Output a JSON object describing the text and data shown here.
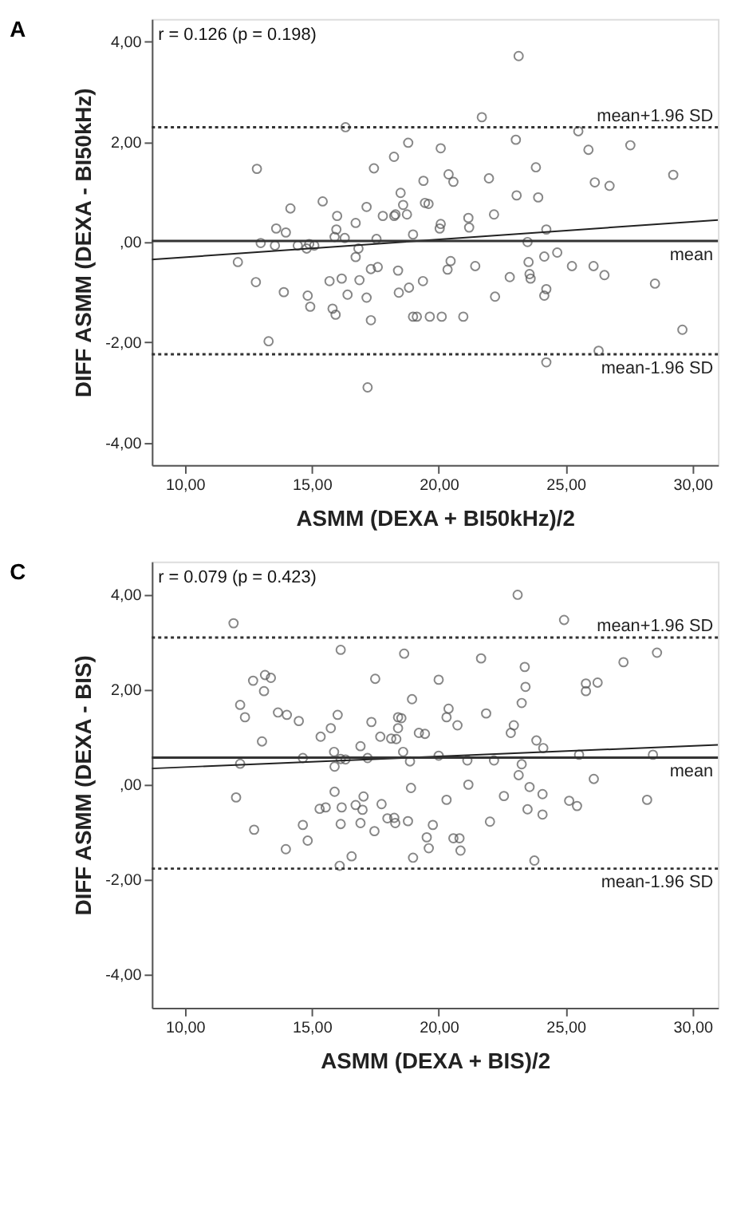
{
  "chart_data": [
    {
      "type": "scatter",
      "title": "A",
      "xlabel": "ASMM (DEXA + BI50kHz)/2",
      "ylabel": "DIFF ASMM (DEXA - BI50kHz)",
      "annotations": [
        "r = 0.126 (p = 0.198)"
      ],
      "xlim": [
        8.7,
        31
      ],
      "ylim": [
        -4.45,
        4.45
      ],
      "xticks": [
        {
          "value": 10,
          "label": "10,00"
        },
        {
          "value": 15,
          "label": "15,00"
        },
        {
          "value": 20,
          "label": "20,00"
        },
        {
          "value": 25,
          "label": "25,00"
        },
        {
          "value": 30,
          "label": "30,00"
        }
      ],
      "yticks": [
        {
          "value": -4,
          "label": "-4,00"
        },
        {
          "value": -2,
          "label": "-2,00"
        },
        {
          "value": 0,
          "label": ",00"
        },
        {
          "value": 2,
          "label": "2,00"
        },
        {
          "value": 4,
          "label": "4,00"
        }
      ],
      "grid": false,
      "ref_lines": [
        {
          "axis": "y",
          "value": 2.29,
          "label": "mean+1.96 SD",
          "line_style": "dotted",
          "color": "#333333"
        },
        {
          "axis": "y",
          "value": 0.02,
          "label": "mean",
          "line_style": "solid",
          "color": "#333333"
        },
        {
          "axis": "y",
          "value": -2.24,
          "label": "mean-1.96 SD",
          "line_style": "dotted",
          "color": "#333333"
        }
      ],
      "series": [
        {
          "marker": "circle",
          "color": "#555555",
          "x": [
            16.33,
            12.84,
            12.09,
            12.8,
            13.3,
            12.99,
            13.55,
            13.6,
            13.98,
            14.16,
            13.9,
            14.45,
            14.8,
            14.9,
            15.1,
            14.84,
            14.94,
            15.43,
            15.7,
            15.82,
            15.94,
            16.0,
            15.97,
            15.9,
            16.18,
            16.3,
            16.41,
            16.73,
            16.73,
            16.88,
            16.84,
            17.16,
            17.16,
            17.45,
            17.33,
            17.6,
            17.33,
            17.2,
            17.55,
            17.8,
            18.24,
            18.25,
            18.4,
            18.43,
            18.5,
            23.15,
            21.7,
            25.5,
            18.8,
            20.08,
            23.04,
            25.9,
            27.55,
            19.4,
            20.39,
            20.58,
            21.98,
            23.83,
            26.15,
            26.73,
            29.24,
            18.6,
            19.46,
            19.6,
            23.07,
            23.92,
            18.3,
            18.75,
            20.08,
            20.04,
            21.17,
            21.2,
            22.18,
            18.99,
            24.24,
            23.5,
            23.54,
            24.16,
            24.67,
            25.25,
            26.1,
            26.53,
            28.52,
            20.47,
            20.35,
            21.44,
            22.8,
            23.58,
            23.62,
            18.83,
            19.38,
            22.22,
            24.16,
            24.24,
            18.99,
            19.14,
            19.65,
            20.12,
            20.97,
            29.6,
            26.3,
            24.24
          ],
          "values": [
            2.29,
            1.46,
            -0.4,
            -0.8,
            -1.98,
            -0.02,
            -0.07,
            0.27,
            0.19,
            0.67,
            -1.0,
            -0.07,
            -0.13,
            -0.04,
            -0.07,
            -1.07,
            -1.29,
            0.81,
            -0.78,
            -1.33,
            -1.45,
            0.52,
            0.25,
            0.1,
            -0.73,
            0.08,
            -1.05,
            0.38,
            -0.3,
            -0.76,
            -0.13,
            0.7,
            -1.11,
            1.47,
            -0.54,
            -0.5,
            -1.56,
            -2.9,
            0.06,
            0.52,
            1.7,
            0.52,
            -0.57,
            -1.01,
            0.98,
            3.71,
            2.49,
            2.21,
            1.98,
            1.87,
            2.04,
            1.84,
            1.93,
            1.22,
            1.35,
            1.2,
            1.27,
            1.49,
            1.19,
            1.12,
            1.34,
            0.74,
            0.78,
            0.76,
            0.93,
            0.89,
            0.55,
            0.55,
            0.36,
            0.27,
            0.48,
            0.29,
            0.55,
            0.15,
            0.25,
            0.0,
            -0.4,
            -0.29,
            -0.21,
            -0.48,
            -0.48,
            -0.66,
            -0.83,
            -0.38,
            -0.55,
            -0.48,
            -0.7,
            -0.64,
            -0.73,
            -0.91,
            -0.78,
            -1.09,
            -1.07,
            -0.94,
            -1.49,
            -1.49,
            -1.49,
            -1.49,
            -1.49,
            -1.75,
            -2.17,
            -2.4
          ]
        },
        {
          "type": "line",
          "marker": "none",
          "color": "#222222",
          "x": [
            8.7,
            31
          ],
          "values": [
            -0.35,
            0.44
          ]
        }
      ]
    },
    {
      "type": "scatter",
      "title": "C",
      "xlabel": "ASMM (DEXA + BIS)/2",
      "ylabel": "DIFF ASMM (DEXA - BIS)",
      "annotations": [
        "r = 0.079 (p = 0.423)"
      ],
      "xlim": [
        8.7,
        31
      ],
      "ylim": [
        -4.7,
        4.7
      ],
      "xticks": [
        {
          "value": 10,
          "label": "10,00"
        },
        {
          "value": 15,
          "label": "15,00"
        },
        {
          "value": 20,
          "label": "20,00"
        },
        {
          "value": 25,
          "label": "25,00"
        },
        {
          "value": 30,
          "label": "30,00"
        }
      ],
      "yticks": [
        {
          "value": -4,
          "label": "-4,00"
        },
        {
          "value": -2,
          "label": "-2,00"
        },
        {
          "value": 0,
          "label": ",00"
        },
        {
          "value": 2,
          "label": "2,00"
        },
        {
          "value": 4,
          "label": "4,00"
        }
      ],
      "grid": false,
      "ref_lines": [
        {
          "axis": "y",
          "value": 3.1,
          "label": "mean+1.96 SD",
          "line_style": "dotted",
          "color": "#333333"
        },
        {
          "axis": "y",
          "value": 0.57,
          "label": "mean",
          "line_style": "solid",
          "color": "#333333"
        },
        {
          "axis": "y",
          "value": -1.77,
          "label": "mean-1.96 SD",
          "line_style": "dotted",
          "color": "#333333"
        }
      ],
      "series": [
        {
          "marker": "circle",
          "color": "#555555",
          "x": [
            11.92,
            16.14,
            12.69,
            13.16,
            13.39,
            13.12,
            12.18,
            12.37,
            17.5,
            13.67,
            14.02,
            14.49,
            16.02,
            15.75,
            15.35,
            17.35,
            17.7,
            18.33,
            18.53,
            13.04,
            16.92,
            14.65,
            15.88,
            15.9,
            16.14,
            16.33,
            17.2,
            12.18,
            12.02,
            12.73,
            13.98,
            14.65,
            14.84,
            15.31,
            15.55,
            15.9,
            16.18,
            16.14,
            16.73,
            17.04,
            17.0,
            16.92,
            17.47,
            17.75,
            18.25,
            16.1,
            16.57,
            23.11,
            24.94,
            18.64,
            21.67,
            23.39,
            27.28,
            28.6,
            20.0,
            23.42,
            25.8,
            25.8,
            26.26,
            18.95,
            23.27,
            18.4,
            20.39,
            20.31,
            20.74,
            21.87,
            22.96,
            22.84,
            18.4,
            18.13,
            19.22,
            19.46,
            23.85,
            24.12,
            18.6,
            18.87,
            20.0,
            21.13,
            22.18,
            23.27,
            25.53,
            28.44,
            23.15,
            18.91,
            21.17,
            23.58,
            26.11,
            20.31,
            22.57,
            24.09,
            25.14,
            25.45,
            28.21,
            23.5,
            24.09,
            17.98,
            18.29,
            18.79,
            19.77,
            22.02,
            19.53,
            19.61,
            18.99,
            20.58,
            20.82,
            20.86,
            23.77
          ],
          "values": [
            3.4,
            2.84,
            2.19,
            2.31,
            2.25,
            1.97,
            1.68,
            1.42,
            2.23,
            1.52,
            1.47,
            1.34,
            1.47,
            1.19,
            1.01,
            1.32,
            1.01,
            0.96,
            1.4,
            0.91,
            0.81,
            0.56,
            0.69,
            0.38,
            0.54,
            0.53,
            0.56,
            0.44,
            -0.27,
            -0.95,
            -1.36,
            -0.85,
            -1.18,
            -0.51,
            -0.48,
            -0.15,
            -0.48,
            -0.83,
            -0.43,
            -0.25,
            -0.53,
            -0.81,
            -0.98,
            -0.41,
            -0.7,
            -1.71,
            -1.51,
            4.0,
            3.47,
            2.76,
            2.66,
            2.48,
            2.58,
            2.78,
            2.21,
            2.06,
            2.13,
            1.97,
            2.15,
            1.8,
            1.72,
            1.42,
            1.6,
            1.42,
            1.25,
            1.5,
            1.25,
            1.09,
            1.19,
            0.97,
            1.09,
            1.07,
            0.93,
            0.77,
            0.69,
            0.49,
            0.61,
            0.51,
            0.51,
            0.43,
            0.63,
            0.63,
            0.2,
            -0.07,
            0.0,
            -0.05,
            0.12,
            -0.32,
            -0.24,
            -0.2,
            -0.34,
            -0.45,
            -0.32,
            -0.52,
            -0.63,
            -0.71,
            -0.81,
            -0.77,
            -0.85,
            -0.78,
            -1.11,
            -1.34,
            -1.54,
            -1.13,
            -1.13,
            -1.39,
            -1.6
          ]
        },
        {
          "type": "line",
          "marker": "none",
          "color": "#222222",
          "x": [
            8.7,
            31
          ],
          "values": [
            0.34,
            0.84
          ]
        }
      ]
    }
  ]
}
